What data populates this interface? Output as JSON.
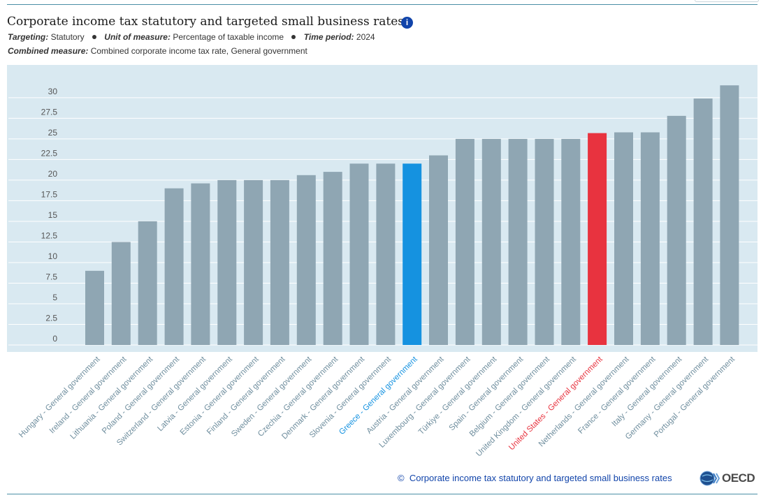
{
  "header": {
    "title": "Corporate income tax statutory and targeted small business rates",
    "info_icon": "info-icon",
    "targeting_label": "Targeting:",
    "targeting_value": "Statutory",
    "unit_label": "Unit of measure:",
    "unit_value": "Percentage of taxable income",
    "time_label": "Time period:",
    "time_value": "2024",
    "combined_label": "Combined measure:",
    "combined_value": "Combined corporate income tax rate, General government"
  },
  "colors": {
    "plot_background": "#d9e9f1",
    "bar_default": "#8fa6b3",
    "bar_highlight_blue": "#1592e0",
    "bar_highlight_red": "#e8333f",
    "label_default": "#6f8e9e",
    "label_blue": "#1592e0",
    "label_red": "#e8333f",
    "tick_label": "#555555"
  },
  "chart_data": {
    "type": "bar",
    "title": "Corporate income tax statutory and targeted small business rates",
    "xlabel": "",
    "ylabel": "",
    "ylim": [
      0,
      31.6
    ],
    "y_ticks": [
      "0",
      "2.5",
      "5",
      "7.5",
      "10",
      "12.5",
      "15",
      "17.5",
      "20",
      "22.5",
      "25",
      "27.5",
      "30"
    ],
    "grid": true,
    "legend": "none",
    "categories": [
      "Hungary - General government",
      "Ireland - General government",
      "Lithuania - General government",
      "Poland - General government",
      "Switzerland - General government",
      "Latvia - General government",
      "Estonia - General government",
      "Finland - General government",
      "Sweden - General government",
      "Czechia - General government",
      "Denmark - General government",
      "Slovenia - General government",
      "Greece - General government",
      "Austria - General government",
      "Luxembourg - General government",
      "Türkiye - General government",
      "Spain - General government",
      "Belgium - General government",
      "United Kingdom - General government",
      "United States - General government",
      "Netherlands - General government",
      "France - General government",
      "Italy - General government",
      "Germany - General government",
      "Portugal - General government"
    ],
    "values": [
      9,
      12.5,
      15,
      19,
      19.6,
      20,
      20,
      20,
      20.6,
      21,
      22,
      22,
      22,
      23,
      25,
      25,
      25,
      25,
      25,
      25.7,
      25.8,
      25.8,
      27.8,
      29.9,
      31.5
    ],
    "highlight": {
      "Greece - General government": "blue",
      "United States - General government": "red"
    }
  },
  "footer": {
    "copyright_symbol": "©",
    "source_link": "Corporate income tax statutory and targeted small business rates",
    "logo_text": "OECD"
  }
}
